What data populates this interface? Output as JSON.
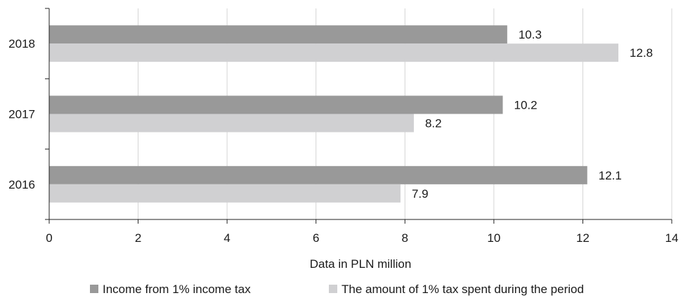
{
  "chart_data": {
    "type": "bar",
    "orientation": "horizontal",
    "categories": [
      "2018",
      "2017",
      "2016"
    ],
    "series": [
      {
        "name": "Income from 1% income tax",
        "values": [
          10.3,
          10.2,
          12.1
        ],
        "color": "#999999"
      },
      {
        "name": "The amount of 1% tax spent during the period",
        "values": [
          12.8,
          8.2,
          7.9
        ],
        "color": "#d0d0d2"
      }
    ],
    "title": "",
    "xlabel": "Data in PLN million",
    "ylabel": "",
    "xlim": [
      0,
      14
    ],
    "xticks": [
      0,
      2,
      4,
      6,
      8,
      10,
      12,
      14
    ],
    "xtick_labels": [
      "0",
      "2",
      "4",
      "6",
      "8",
      "10",
      "12",
      "14"
    ],
    "grid": "vertical",
    "legend": "bottom",
    "data_labels": true
  }
}
